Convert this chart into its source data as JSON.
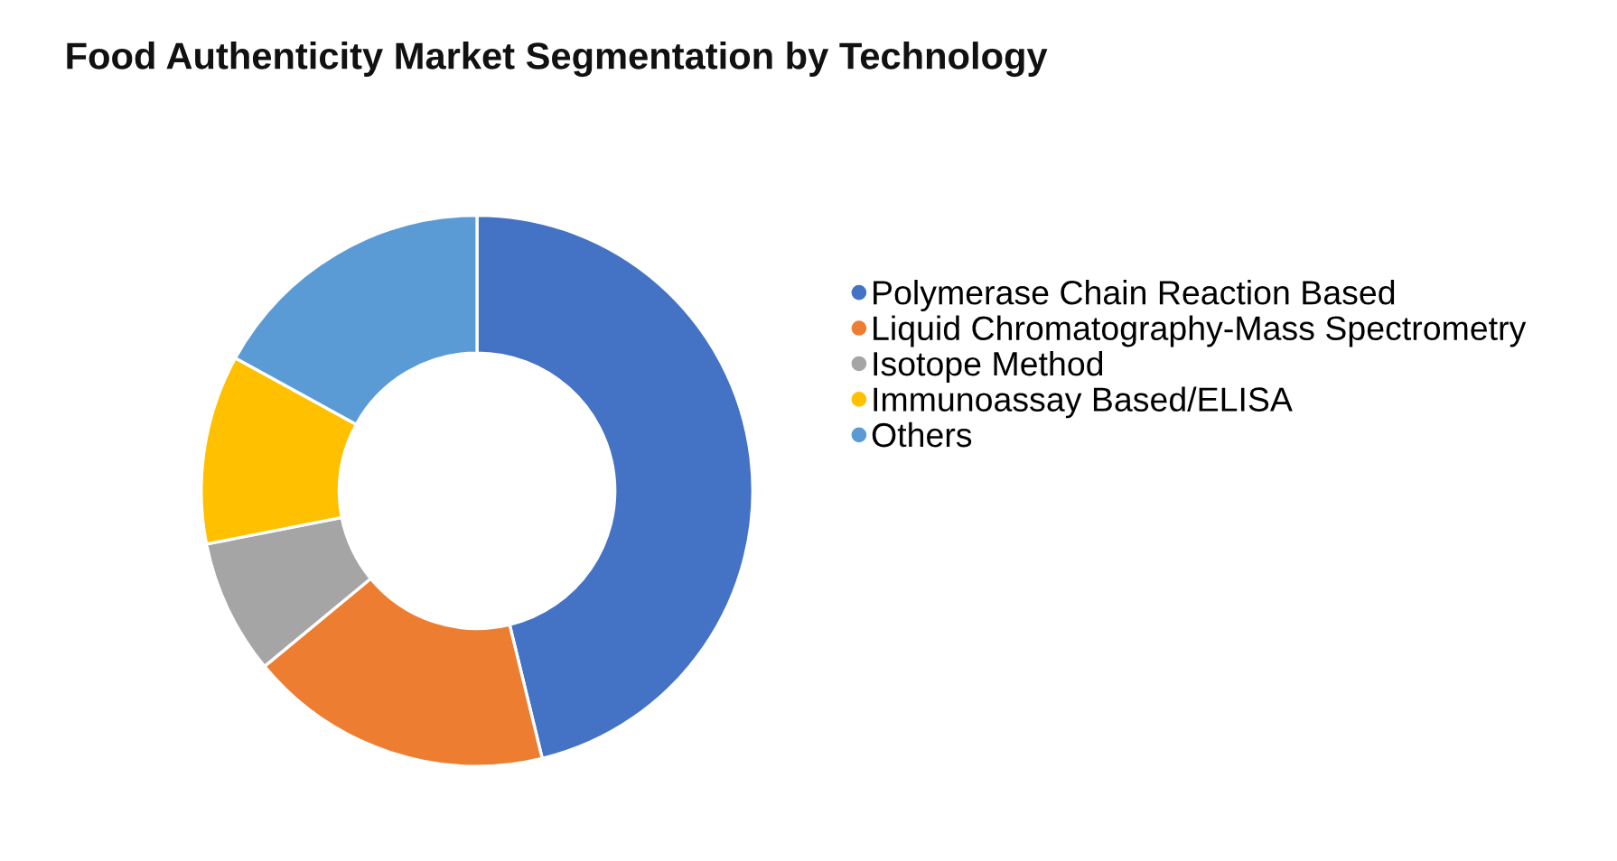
{
  "chart_data": {
    "type": "donut",
    "title": "Food Authenticity Market Segmentation by Technology",
    "categories": [
      "Polymerase Chain Reaction Based",
      "Liquid Chromatography-Mass Spectrometry",
      "Isotope Method",
      "Immunoassay Based/ELISA",
      "Others"
    ],
    "values": [
      46.2,
      17.8,
      7.9,
      11.1,
      17.0
    ],
    "colors": [
      "#4472c4",
      "#ed7d31",
      "#a5a5a5",
      "#ffc000",
      "#5b9bd5"
    ],
    "legend": "right"
  }
}
